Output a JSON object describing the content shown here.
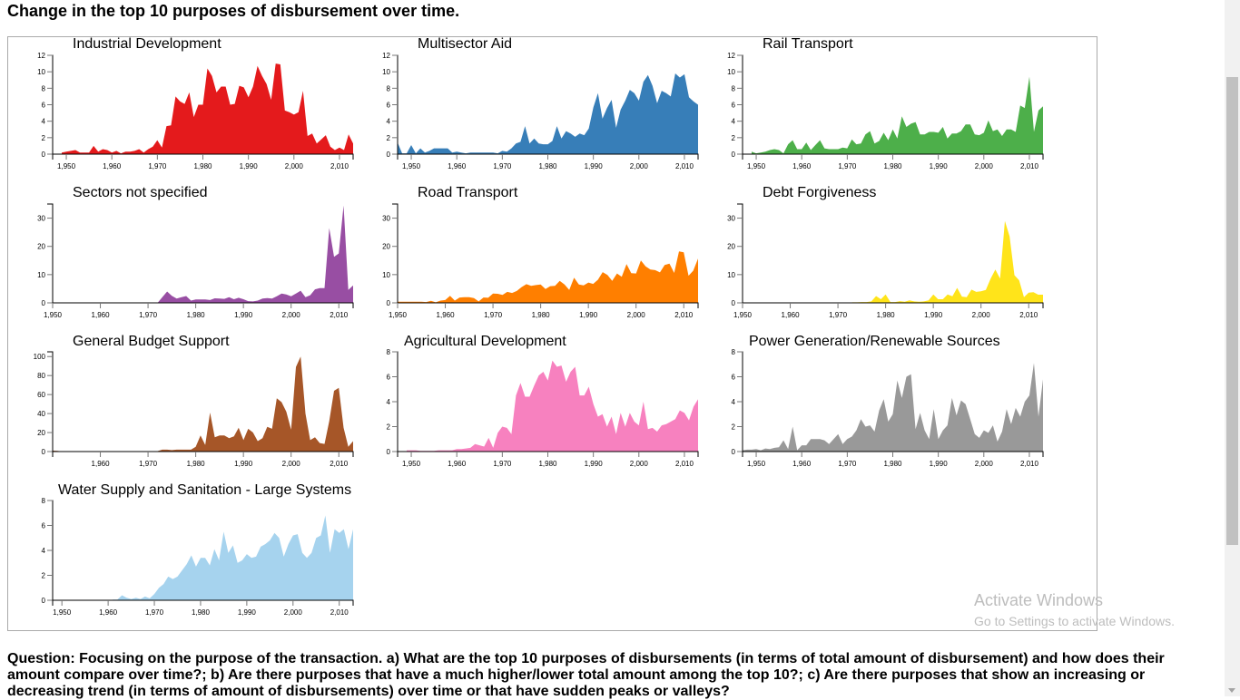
{
  "page": {
    "title": "Change in the top 10 purposes of disbursement over time."
  },
  "question": "Question: Focusing on the purpose of the transaction. a) What are the top 10 purposes of disbursements (in terms of total amount of disbursement) and how does their amount compare over time?; b) Are there purposes that have a much higher/lower total amount among the top 10?; c) Are there purposes that show an increasing or decreasing trend (in terms of amount of disbursements) over time or that have sudden peaks or valleys?",
  "watermark": {
    "line1": "Activate Windows",
    "line2": "Go to Settings to activate Windows."
  },
  "chart_data": [
    {
      "type": "area",
      "title": "Industrial Development",
      "color": "#e41a1c",
      "xlim": [
        1947,
        2013
      ],
      "ylim": [
        0,
        12
      ],
      "yticks": [
        0,
        2,
        4,
        6,
        8,
        10,
        12
      ],
      "xticks": [
        1950,
        1960,
        1970,
        1980,
        1990,
        2000,
        2010
      ],
      "x_start": 1949,
      "values": [
        0.2,
        0.3,
        0.4,
        0.5,
        0.2,
        0.2,
        0.2,
        1.0,
        0.3,
        0.6,
        0.5,
        0.2,
        0.4,
        0.1,
        0.3,
        0.3,
        0.4,
        0.6,
        0.2,
        0.6,
        0.9,
        1.7,
        0.8,
        3.4,
        3.5,
        7.0,
        6.4,
        6.1,
        7.5,
        4.5,
        6.0,
        6.0,
        10.4,
        9.5,
        7.5,
        8.2,
        8.2,
        6.0,
        6.1,
        8.3,
        8.1,
        6.9,
        8.2,
        10.7,
        9.5,
        8.5,
        6.6,
        11.0,
        10.9,
        5.3,
        5.1,
        4.8,
        5.1,
        7.7,
        2.2,
        2.5,
        1.3,
        1.8,
        2.3,
        0.9,
        0.5,
        0.8,
        0.5,
        2.4,
        1.3
      ]
    },
    {
      "type": "area",
      "title": "Multisector Aid",
      "color": "#377eb8",
      "xlim": [
        1947,
        2013
      ],
      "ylim": [
        0,
        12
      ],
      "yticks": [
        0,
        2,
        4,
        6,
        8,
        10,
        12
      ],
      "xticks": [
        1950,
        1960,
        1970,
        1980,
        1990,
        2000,
        2010
      ],
      "x_start": 1947,
      "values": [
        1.4,
        0.1,
        0.1,
        1.1,
        0.1,
        0.7,
        0.2,
        0.4,
        0.7,
        0.7,
        0.7,
        0.7,
        0.2,
        0.3,
        0.2,
        0.1,
        0.2,
        0.2,
        0.2,
        0.2,
        0.2,
        0.2,
        0.1,
        0.4,
        0.3,
        0.7,
        1.3,
        1.5,
        3.4,
        1.3,
        1.9,
        1.3,
        1.2,
        1.2,
        1.6,
        3.4,
        1.9,
        2.8,
        2.5,
        2.1,
        2.5,
        2.3,
        3.1,
        5.7,
        7.4,
        4.3,
        5.6,
        6.6,
        3.2,
        5.4,
        6.5,
        7.8,
        7.4,
        6.5,
        8.8,
        9.6,
        8.3,
        6.2,
        7.7,
        7.4,
        7.0,
        9.8,
        9.3,
        9.7,
        6.9,
        6.4,
        6.0
      ]
    },
    {
      "type": "area",
      "title": "Rail Transport",
      "color": "#4daf4a",
      "xlim": [
        1947,
        2013
      ],
      "ylim": [
        0,
        12
      ],
      "yticks": [
        0,
        2,
        4,
        6,
        8,
        10,
        12
      ],
      "xticks": [
        1950,
        1960,
        1970,
        1980,
        1990,
        2000,
        2010
      ],
      "x_start": 1949,
      "values": [
        0.3,
        0.1,
        0.2,
        0.3,
        0.5,
        0.6,
        0.5,
        0.1,
        1.2,
        1.7,
        0.6,
        0.6,
        1.4,
        0.5,
        1.1,
        1.7,
        0.7,
        0.6,
        0.6,
        0.6,
        0.8,
        0.7,
        1.8,
        1.2,
        1.3,
        2.4,
        2.8,
        1.3,
        1.6,
        2.6,
        1.7,
        3.0,
        1.9,
        4.6,
        3.3,
        3.7,
        3.9,
        2.4,
        2.4,
        2.7,
        2.7,
        2.6,
        3.3,
        1.9,
        2.5,
        2.5,
        2.8,
        3.6,
        3.6,
        2.4,
        2.3,
        2.6,
        4.1,
        2.8,
        3.0,
        2.2,
        3.0,
        3.0,
        2.7,
        5.9,
        5.6,
        9.4,
        2.7,
        5.3,
        5.8
      ]
    },
    {
      "type": "area",
      "title": "Sectors not specified",
      "color": "#984ea3",
      "xlim": [
        1950,
        2013
      ],
      "ylim": [
        0,
        35
      ],
      "yticks": [
        0,
        10,
        20,
        30
      ],
      "xticks": [
        1950,
        1960,
        1970,
        1980,
        1990,
        2000,
        2010
      ],
      "x_start": 1972,
      "values": [
        0,
        2,
        4,
        2.5,
        1.5,
        2,
        2.4,
        0.8,
        1.2,
        1.2,
        1.2,
        1,
        1.6,
        1.5,
        1.4,
        2,
        1.3,
        1.8,
        1.3,
        0.6,
        0.5,
        0.8,
        1.5,
        1.7,
        1.5,
        2.3,
        3.3,
        3,
        2.3,
        3.3,
        4.3,
        2,
        2.7,
        4.8,
        5.2,
        5.2,
        26.5,
        16.3,
        17.5,
        34.5,
        4.6,
        6.2
      ]
    },
    {
      "type": "area",
      "title": "Road Transport",
      "color": "#ff7f00",
      "xlim": [
        1950,
        2013
      ],
      "ylim": [
        0,
        35
      ],
      "yticks": [
        0,
        10,
        20,
        30
      ],
      "xticks": [
        1950,
        1960,
        1970,
        1980,
        1990,
        2000,
        2010
      ],
      "x_start": 1950,
      "values": [
        0.4,
        0.4,
        0.4,
        0.4,
        0.4,
        0.4,
        0.3,
        0.7,
        0.2,
        0.8,
        1,
        2.5,
        0.8,
        1.9,
        2,
        2,
        1.7,
        0.5,
        1.9,
        1.8,
        3.3,
        3.2,
        2.8,
        3.9,
        3.5,
        4.2,
        5.6,
        6.6,
        6,
        6.3,
        6.5,
        4.9,
        5.9,
        6,
        7.8,
        6.5,
        4.6,
        8.9,
        6.5,
        6.2,
        7.2,
        6.7,
        8.2,
        10.9,
        9.9,
        7.8,
        10.4,
        9.2,
        13.7,
        10.5,
        10.4,
        15,
        12.9,
        11.8,
        11.6,
        10.8,
        13.4,
        13.9,
        10.6,
        18.2,
        17.9,
        9.6,
        11.4,
        15.7
      ]
    },
    {
      "type": "area",
      "title": "Debt Forgiveness",
      "color": "#ffe41a",
      "xlim": [
        1950,
        2013
      ],
      "ylim": [
        0,
        35
      ],
      "yticks": [
        0,
        10,
        20,
        30
      ],
      "xticks": [
        1950,
        1960,
        1970,
        1980,
        1990,
        2000,
        2010
      ],
      "x_start": 1973,
      "values": [
        0.2,
        0.2,
        0.3,
        0.3,
        0.5,
        2.4,
        1.3,
        3,
        0.3,
        0.3,
        0.6,
        0.4,
        0.9,
        0.5,
        0.4,
        0.5,
        0.9,
        3,
        1.3,
        1.3,
        3,
        2.3,
        5.3,
        2.2,
        2,
        4.7,
        3.9,
        4.1,
        4.6,
        8.5,
        11.8,
        8.6,
        29,
        23.5,
        9.8,
        8,
        2,
        3.6,
        3.8,
        2.9,
        2.9
      ]
    },
    {
      "type": "area",
      "title": "General Budget Support",
      "color": "#a65628",
      "xlim": [
        1950,
        2013
      ],
      "ylim": [
        0,
        105
      ],
      "yticks": [
        0,
        20,
        40,
        60,
        80,
        100
      ],
      "xticks": [
        1960,
        1970,
        1980,
        1990,
        2000,
        2010
      ],
      "x_start": 1950,
      "values": [
        1,
        0.8,
        0,
        0,
        0,
        0,
        0,
        0,
        0,
        0,
        0,
        0,
        0,
        0,
        0,
        0,
        0,
        0,
        0,
        0,
        0,
        0,
        0.5,
        2,
        2,
        1.5,
        2,
        2,
        2,
        2,
        5,
        17,
        7,
        41,
        15,
        17,
        17,
        14,
        16,
        25,
        12,
        24,
        20,
        11,
        14,
        26,
        24,
        56,
        52,
        42,
        23,
        89,
        100,
        40,
        12,
        15,
        9,
        8,
        32,
        64,
        67,
        25,
        5,
        11
      ]
    },
    {
      "type": "area",
      "title": "Agricultural Development",
      "color": "#f781bf",
      "xlim": [
        1947,
        2013
      ],
      "ylim": [
        0,
        8
      ],
      "yticks": [
        0,
        2,
        4,
        6,
        8
      ],
      "xticks": [
        1950,
        1960,
        1970,
        1980,
        1990,
        2000,
        2010
      ],
      "x_start": 1949,
      "values": [
        0.1,
        0.1,
        0.1,
        0.05,
        0.05,
        0.05,
        0.05,
        0.1,
        0.1,
        0.1,
        0.1,
        0.2,
        0.2,
        0.25,
        0.3,
        0.6,
        0.5,
        0.4,
        1.1,
        0.3,
        1.5,
        2,
        1.9,
        1.4,
        4.5,
        5.5,
        4.4,
        4.4,
        5.3,
        6.1,
        6.4,
        5.7,
        7.3,
        6.8,
        6.9,
        5.6,
        6.4,
        6.8,
        4.5,
        4.5,
        5.2,
        3.8,
        2.8,
        3,
        2,
        2.8,
        1.4,
        3.1,
        2,
        3.1,
        2.4,
        2.1,
        4,
        1.8,
        1.9,
        1.6,
        2.1,
        2.2,
        2.4,
        2.6,
        3.3,
        3.1,
        2.5,
        3.6,
        4.2
      ]
    },
    {
      "type": "area",
      "title": "Power Generation/Renewable Sources",
      "color": "#999999",
      "xlim": [
        1947,
        2013
      ],
      "ylim": [
        0,
        8
      ],
      "yticks": [
        0,
        2,
        4,
        6,
        8
      ],
      "xticks": [
        1950,
        1960,
        1970,
        1980,
        1990,
        2000,
        2010
      ],
      "x_start": 1947,
      "values": [
        0.1,
        0.15,
        0.15,
        0.2,
        0.1,
        0.25,
        0.2,
        0.3,
        0.35,
        0.9,
        0.2,
        2,
        0.1,
        0.5,
        0.5,
        1,
        1,
        1,
        0.9,
        0.6,
        1,
        1.4,
        0.6,
        1,
        1.2,
        1.7,
        2.6,
        2,
        2.1,
        1.6,
        3.3,
        4.2,
        2.4,
        3,
        5.7,
        4.3,
        6,
        6.2,
        1.8,
        3.1,
        1.7,
        1,
        3.4,
        1,
        1.7,
        2.1,
        4.3,
        2.9,
        4.1,
        3.8,
        2.6,
        1.4,
        1.1,
        1.7,
        1.5,
        2.1,
        0.8,
        1.6,
        3.4,
        2.2,
        3.5,
        2.8,
        4,
        4.5,
        7.1,
        2.8,
        5.8
      ]
    },
    {
      "type": "area",
      "title": "Water Supply and Sanitation - Large Systems",
      "color": "#a6d3ee",
      "xlim": [
        1948,
        2013
      ],
      "ylim": [
        0,
        8
      ],
      "yticks": [
        0,
        2,
        4,
        6,
        8
      ],
      "xticks": [
        1950,
        1960,
        1970,
        1980,
        1990,
        2000,
        2010
      ],
      "x_start": 1961,
      "values": [
        0.05,
        0.05,
        0.4,
        0.2,
        0.1,
        0.2,
        0.1,
        0.3,
        0.15,
        0.5,
        1,
        1.3,
        1.9,
        1.7,
        1.9,
        2.4,
        2.9,
        3.6,
        2.7,
        3.4,
        3.4,
        2.8,
        4.1,
        3.2,
        5.5,
        3.8,
        4.4,
        3,
        3.2,
        3.7,
        3.4,
        3.5,
        4.3,
        4.5,
        4.8,
        5.4,
        5,
        3.5,
        4.5,
        5.2,
        5.3,
        3.8,
        3.4,
        3.8,
        5,
        5.2,
        6.8,
        3.8,
        5.7,
        5.4,
        5.7,
        4.1,
        5.7
      ]
    }
  ]
}
